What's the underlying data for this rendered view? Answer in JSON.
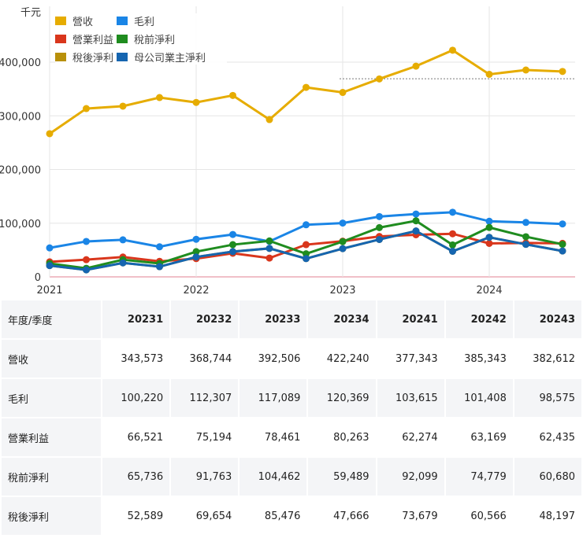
{
  "chart_data": {
    "type": "line",
    "unit_label": "千元",
    "x": [
      "2021Q1",
      "2021Q2",
      "2021Q3",
      "2021Q4",
      "2022Q1",
      "2022Q2",
      "2022Q3",
      "2022Q4",
      "2023Q1",
      "2023Q2",
      "2023Q3",
      "2023Q4",
      "2024Q1",
      "2024Q2",
      "2024Q3"
    ],
    "x_tick_labels": [
      "2021",
      "2022",
      "2023",
      "2024"
    ],
    "y_tick_labels": [
      "0",
      "100,000",
      "200,000",
      "300,000",
      "400,000"
    ],
    "ylim": [
      0,
      400000
    ],
    "grid": true,
    "legend_position": "top-left",
    "reference_line": {
      "value": 369000,
      "from": "2023Q1",
      "style": "dotted"
    },
    "series": [
      {
        "name": "營收",
        "color": "#e6ac00",
        "values": [
          266700,
          313500,
          318000,
          334000,
          325000,
          338000,
          293000,
          353000,
          343573,
          368744,
          392506,
          422240,
          377343,
          385343,
          382612
        ]
      },
      {
        "name": "毛利",
        "color": "#1a85e6",
        "values": [
          54000,
          66000,
          69000,
          56000,
          70000,
          79000,
          66000,
          97000,
          100220,
          112307,
          117089,
          120369,
          103615,
          101408,
          98575
        ]
      },
      {
        "name": "營業利益",
        "color": "#d9361c",
        "values": [
          28000,
          32000,
          37000,
          29000,
          34000,
          44000,
          35000,
          60000,
          66521,
          75194,
          78461,
          80263,
          62274,
          63169,
          62435
        ]
      },
      {
        "name": "稅前淨利",
        "color": "#1f8c1f",
        "values": [
          25000,
          16000,
          32000,
          25000,
          47000,
          60000,
          67000,
          43000,
          65736,
          91763,
          104462,
          59489,
          92099,
          74779,
          60680
        ]
      },
      {
        "name": "稅後淨利",
        "color": "#b8900a",
        "values": [
          21000,
          13000,
          26000,
          19000,
          37000,
          47000,
          53000,
          34000,
          52589,
          69654,
          85476,
          47666,
          73679,
          60566,
          48197
        ]
      },
      {
        "name": "母公司業主淨利",
        "color": "#1565b0",
        "values": [
          21000,
          13000,
          26000,
          19000,
          37000,
          47000,
          53000,
          34000,
          52589,
          69654,
          85476,
          47666,
          73679,
          60566,
          48197
        ]
      }
    ]
  },
  "table": {
    "header": [
      "年度/季度",
      "20231",
      "20232",
      "20233",
      "20234",
      "20241",
      "20242",
      "20243"
    ],
    "rows": [
      [
        "營收",
        "343,573",
        "368,744",
        "392,506",
        "422,240",
        "377,343",
        "385,343",
        "382,612"
      ],
      [
        "毛利",
        "100,220",
        "112,307",
        "117,089",
        "120,369",
        "103,615",
        "101,408",
        "98,575"
      ],
      [
        "營業利益",
        "66,521",
        "75,194",
        "78,461",
        "80,263",
        "62,274",
        "63,169",
        "62,435"
      ],
      [
        "稅前淨利",
        "65,736",
        "91,763",
        "104,462",
        "59,489",
        "92,099",
        "74,779",
        "60,680"
      ],
      [
        "稅後淨利",
        "52,589",
        "69,654",
        "85,476",
        "47,666",
        "73,679",
        "60,566",
        "48,197"
      ]
    ]
  }
}
